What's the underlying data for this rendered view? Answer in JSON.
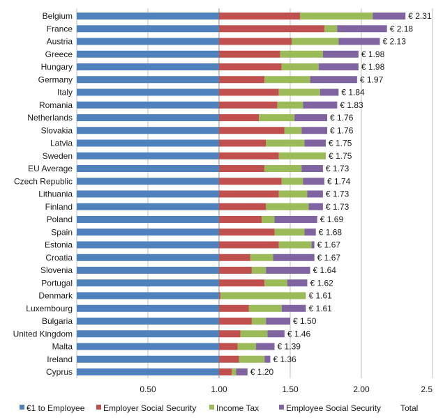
{
  "chart_data": {
    "type": "bar",
    "orientation": "horizontal",
    "stacked": true,
    "title": "",
    "xlabel": "",
    "ylabel": "",
    "xlim": [
      0,
      2.5
    ],
    "x_ticks": [
      0.5,
      1.0,
      1.5,
      2.0,
      2.5
    ],
    "x_tick_labels": [
      "0.50",
      "1.00",
      "1.50",
      "2.00",
      "2.5"
    ],
    "grid": "vertical major gridlines",
    "legend_position": "bottom",
    "categories": [
      "Belgium",
      "France",
      "Austria",
      "Greece",
      "Hungary",
      "Germany",
      "Italy",
      "Romania",
      "Netherlands",
      "Slovakia",
      "Latvia",
      "Sweden",
      "EU Average",
      "Czech Republic",
      "Lithuania",
      "Finland",
      "Poland",
      "Spain",
      "Estonia",
      "Croatia",
      "Slovenia",
      "Portugal",
      "Denmark",
      "Luxembourg",
      "Bulgaria",
      "United Kingdom",
      "Malta",
      "Ireland",
      "Cyprus"
    ],
    "series": [
      {
        "name": "€1 to Employee",
        "color": "#4f81bd",
        "values": [
          1,
          1,
          1,
          1,
          1,
          1,
          1,
          1,
          1,
          1,
          1,
          1,
          1,
          1,
          1,
          1,
          1,
          1,
          1,
          1,
          1,
          1,
          1,
          1,
          1,
          1,
          1,
          1,
          1
        ]
      },
      {
        "name": "Employer Social Security",
        "color": "#c0504d",
        "values": [
          0.57,
          0.74,
          0.51,
          0.43,
          0.44,
          0.32,
          0.42,
          0.41,
          0.28,
          0.46,
          0.33,
          0.42,
          0.32,
          0.44,
          0.42,
          0.33,
          0.3,
          0.39,
          0.42,
          0.22,
          0.23,
          0.32,
          0.01,
          0.21,
          0.23,
          0.15,
          0.13,
          0.14,
          0.09
        ]
      },
      {
        "name": "Income Tax",
        "color": "#9bbb59",
        "values": [
          0.51,
          0.09,
          0.33,
          0.3,
          0.26,
          0.32,
          0.29,
          0.18,
          0.25,
          0.12,
          0.27,
          0.33,
          0.26,
          0.15,
          0.2,
          0.3,
          0.09,
          0.21,
          0.23,
          0.16,
          0.1,
          0.16,
          0.6,
          0.23,
          0.1,
          0.19,
          0.13,
          0.18,
          0.03
        ]
      },
      {
        "name": "Employee Social Security",
        "color": "#8064a2",
        "values": [
          0.23,
          0.35,
          0.29,
          0.25,
          0.28,
          0.33,
          0.13,
          0.24,
          0.23,
          0.18,
          0.15,
          0.0,
          0.15,
          0.15,
          0.11,
          0.1,
          0.3,
          0.08,
          0.02,
          0.29,
          0.31,
          0.14,
          0.0,
          0.17,
          0.17,
          0.12,
          0.13,
          0.04,
          0.08
        ]
      }
    ],
    "totals": [
      2.31,
      2.18,
      2.13,
      1.98,
      1.98,
      1.97,
      1.84,
      1.83,
      1.76,
      1.76,
      1.75,
      1.75,
      1.73,
      1.74,
      1.73,
      1.73,
      1.69,
      1.68,
      1.67,
      1.67,
      1.64,
      1.62,
      1.61,
      1.61,
      1.5,
      1.46,
      1.39,
      1.36,
      1.2
    ],
    "total_labels": [
      "€ 2.31",
      "€ 2.18",
      "€ 2.13",
      "€ 1.98",
      "€ 1.98",
      "€ 1.97",
      "€ 1.84",
      "€ 1.83",
      "€ 1.76",
      "€ 1.76",
      "€ 1.75",
      "€ 1.75",
      "€ 1.73",
      "€ 1.74",
      "€ 1.73",
      "€ 1.73",
      "€ 1.69",
      "€ 1.68",
      "€ 1.67",
      "€ 1.67",
      "€ 1.64",
      "€ 1.62",
      "€ 1.61",
      "€ 1.61",
      "€ 1.50",
      "€ 1.46",
      "€ 1.39",
      "€ 1.36",
      "€ 1.20"
    ],
    "legend": [
      "€1 to Employee",
      "Employer Social Security",
      "Income Tax",
      "Employee Social Security",
      "Total"
    ]
  }
}
